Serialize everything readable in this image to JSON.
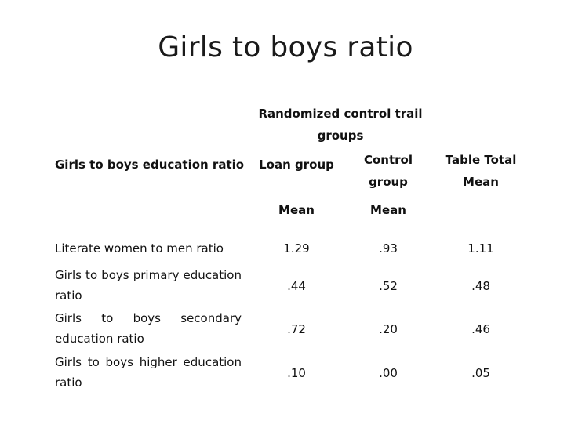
{
  "slide": {
    "title": "Girls to boys ratio"
  },
  "table": {
    "group_header": "Randomized control trail groups",
    "row_header": "Girls to boys education ratio",
    "columns": {
      "loan": "Loan group",
      "control": "Control group",
      "total": "Table Total Mean"
    },
    "subheaders": {
      "loan": "Mean",
      "control": "Mean"
    },
    "rows": [
      {
        "label": "Literate women to men ratio",
        "loan": "1.29",
        "control": ".93",
        "total": "1.11"
      },
      {
        "label": "Girls to boys primary education ratio",
        "loan": ".44",
        "control": ".52",
        "total": ".48"
      },
      {
        "label": "Girls to boys secondary education ratio",
        "loan": ".72",
        "control": ".20",
        "total": ".46"
      },
      {
        "label": "Girls to boys higher education ratio",
        "loan": ".10",
        "control": ".00",
        "total": ".05"
      }
    ]
  }
}
